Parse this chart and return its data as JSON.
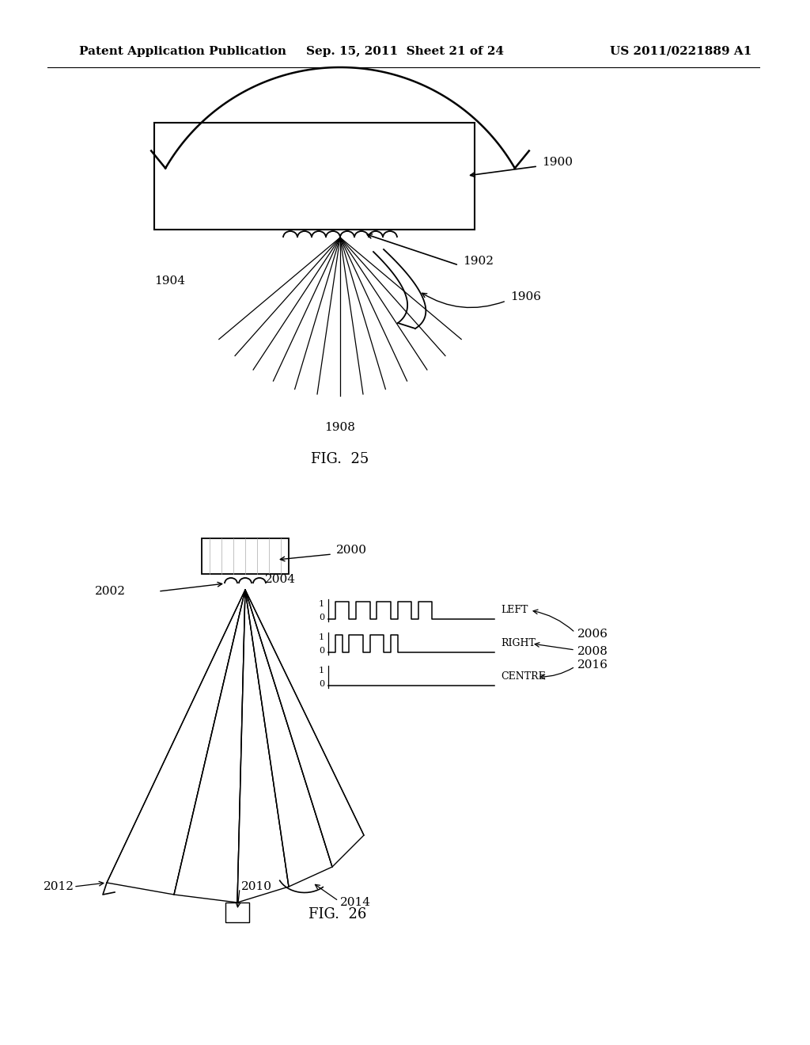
{
  "bg_color": "#ffffff",
  "header_left": "Patent Application Publication",
  "header_mid": "Sep. 15, 2011  Sheet 21 of 24",
  "header_right": "US 2011/0221889 A1",
  "fig25_label": "FIG.  25",
  "fig26_label": "FIG.  26"
}
